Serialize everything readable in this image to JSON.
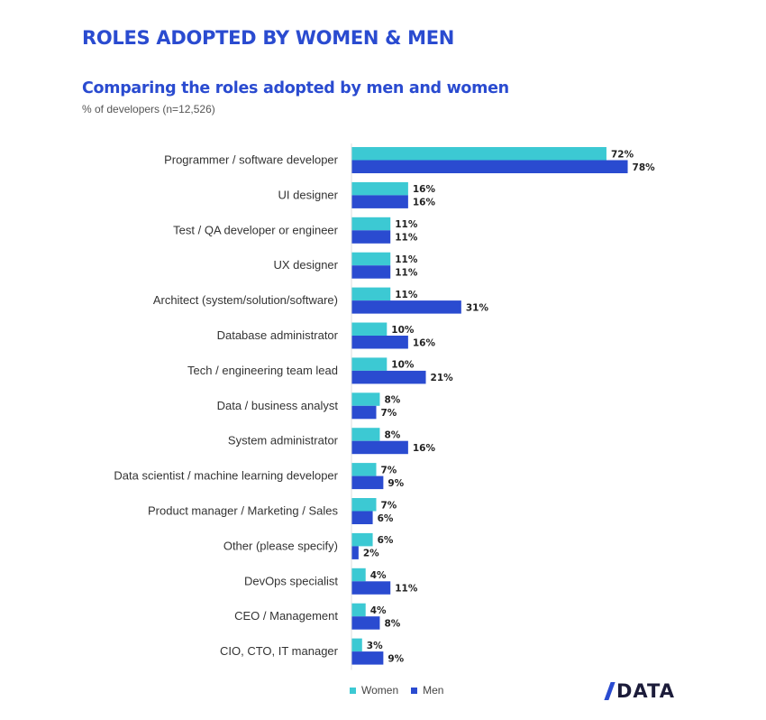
{
  "header": {
    "title": "ROLES ADOPTED BY WOMEN & MEN"
  },
  "brand": {
    "name": "DATA"
  },
  "colors": {
    "women": "#3cc9d3",
    "men": "#2a4bd0",
    "title": "#2a4bd0"
  },
  "chart_data": {
    "type": "bar",
    "orientation": "horizontal",
    "title": "Comparing the roles adopted by men and women",
    "subtitle": "% of developers (n=12,526)",
    "xlim": [
      0,
      100
    ],
    "grid": false,
    "legend_position": "bottom",
    "categories": [
      "Programmer / software developer",
      "UI designer",
      "Test / QA developer or engineer",
      "UX designer",
      "Architect (system/solution/software)",
      "Database administrator",
      "Tech / engineering team lead",
      "Data / business analyst",
      "System administrator",
      "Data scientist / machine learning developer",
      "Product manager / Marketing / Sales",
      "Other (please specify)",
      "DevOps specialist",
      "CEO / Management",
      "CIO, CTO, IT manager"
    ],
    "series": [
      {
        "name": "Women",
        "values": [
          72,
          16,
          11,
          11,
          11,
          10,
          10,
          8,
          8,
          7,
          7,
          6,
          4,
          4,
          3
        ]
      },
      {
        "name": "Men",
        "values": [
          78,
          16,
          11,
          11,
          31,
          16,
          21,
          7,
          16,
          9,
          6,
          2,
          11,
          8,
          9
        ]
      }
    ]
  }
}
